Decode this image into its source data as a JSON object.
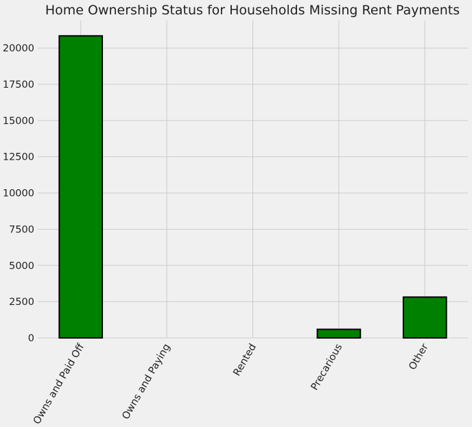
{
  "chart_data": {
    "type": "bar",
    "title": "Home Ownership Status for Households Missing Rent Payments",
    "xlabel": "",
    "ylabel": "",
    "categories": [
      "Owns and Paid Off",
      "Owns and Paying",
      "Rented",
      "Precarious",
      "Other"
    ],
    "values": [
      20844,
      0,
      0,
      591,
      2817
    ],
    "ylim": [
      0,
      21900
    ],
    "yticks": [
      0,
      2500,
      5000,
      7500,
      10000,
      12500,
      15000,
      17500,
      20000
    ],
    "grid": true,
    "legend": "none",
    "colors": {
      "bar": "#008000",
      "edge": "#000000",
      "background": "#f0f0f0",
      "grid": "#cbcbcb"
    }
  }
}
